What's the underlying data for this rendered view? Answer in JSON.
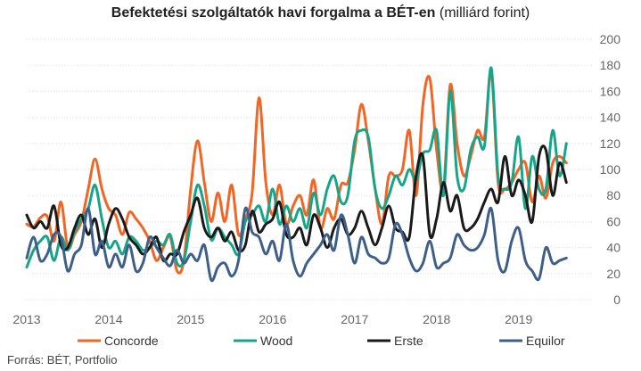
{
  "header": {
    "title_bold": "Befektetési szolgáltatók havi forgalma a BÉT-en",
    "title_rest": "(milliárd forint)"
  },
  "footer": {
    "source": "Forrás: BÉT, Portfolio"
  },
  "colors": {
    "Concorde": "#f26522",
    "Wood": "#17a589",
    "Erste": "#1a1a1a",
    "Equilor": "#3d5f8a",
    "grid": "#dddddd",
    "axis_text": "#666666"
  },
  "chart_data": {
    "type": "line",
    "title": "Befektetési szolgáltatók havi forgalma a BÉT-en (milliárd forint)",
    "xlabel": "",
    "ylabel": "",
    "ylim": [
      0,
      200
    ],
    "yticks": [
      0,
      20,
      40,
      60,
      80,
      100,
      120,
      140,
      160,
      180,
      200
    ],
    "xlim": [
      2013.0,
      2019.917
    ],
    "xticks": [
      2013,
      2014,
      2015,
      2016,
      2017,
      2018,
      2019
    ],
    "grid": true,
    "legend": "bottom",
    "series": [
      {
        "name": "Concorde",
        "x_start": 2013.0,
        "x_step": 0.08333,
        "values": [
          58,
          56,
          63,
          64,
          45,
          75,
          40,
          50,
          60,
          85,
          108,
          85,
          70,
          65,
          50,
          67,
          62,
          55,
          45,
          30,
          40,
          48,
          22,
          30,
          85,
          122,
          90,
          60,
          82,
          60,
          88,
          50,
          62,
          82,
          155,
          90,
          65,
          88,
          58,
          72,
          80,
          65,
          92,
          55,
          70,
          62,
          88,
          90,
          115,
          150,
          122,
          85,
          58,
          95,
          95,
          100,
          130,
          80,
          150,
          170,
          115,
          85,
          165,
          120,
          95,
          110,
          130,
          125,
          175,
          90,
          85,
          90,
          100,
          105,
          75,
          95,
          78,
          105,
          110,
          105
        ]
      },
      {
        "name": "Wood",
        "x_start": 2013.0,
        "x_step": 0.08333,
        "values": [
          25,
          38,
          45,
          48,
          30,
          48,
          38,
          52,
          62,
          70,
          88,
          62,
          40,
          45,
          35,
          48,
          45,
          38,
          40,
          45,
          42,
          50,
          28,
          30,
          60,
          88,
          72,
          46,
          55,
          48,
          42,
          35,
          60,
          65,
          72,
          60,
          85,
          58,
          72,
          60,
          70,
          55,
          82,
          65,
          85,
          95,
          75,
          80,
          122,
          130,
          125,
          85,
          70,
          80,
          95,
          88,
          100,
          92,
          112,
          115,
          130,
          80,
          160,
          95,
          85,
          115,
          125,
          118,
          178,
          95,
          85,
          90,
          125,
          70,
          110,
          85,
          85,
          130,
          95,
          120
        ]
      },
      {
        "name": "Erste",
        "x_start": 2013.0,
        "x_step": 0.08333,
        "values": [
          65,
          55,
          60,
          55,
          72,
          42,
          40,
          55,
          65,
          50,
          62,
          40,
          58,
          70,
          62,
          48,
          42,
          35,
          40,
          48,
          30,
          35,
          35,
          52,
          65,
          78,
          55,
          48,
          55,
          45,
          52,
          38,
          42,
          68,
          52,
          58,
          62,
          75,
          50,
          48,
          55,
          42,
          65,
          55,
          40,
          55,
          62,
          50,
          55,
          68,
          55,
          42,
          55,
          72,
          55,
          52,
          48,
          95,
          110,
          50,
          62,
          90,
          68,
          80,
          55,
          55,
          62,
          75,
          85,
          75,
          110,
          80,
          92,
          80,
          60,
          110,
          115,
          80,
          105,
          90
        ]
      },
      {
        "name": "Equilor",
        "x_start": 2013.0,
        "x_step": 0.08333,
        "values": [
          32,
          48,
          30,
          35,
          50,
          48,
          22,
          35,
          42,
          70,
          35,
          45,
          25,
          35,
          25,
          42,
          22,
          28,
          48,
          40,
          32,
          26,
          38,
          28,
          35,
          30,
          42,
          15,
          25,
          28,
          18,
          30,
          70,
          52,
          48,
          35,
          45,
          30,
          58,
          30,
          18,
          28,
          35,
          42,
          50,
          38,
          65,
          50,
          28,
          48,
          35,
          32,
          28,
          32,
          58,
          50,
          32,
          22,
          28,
          45,
          25,
          28,
          32,
          50,
          42,
          38,
          40,
          50,
          70,
          30,
          22,
          45,
          55,
          30,
          22,
          16,
          40,
          28,
          30,
          32
        ]
      }
    ],
    "legend_entries": [
      "Concorde",
      "Wood",
      "Erste",
      "Equilor"
    ]
  }
}
